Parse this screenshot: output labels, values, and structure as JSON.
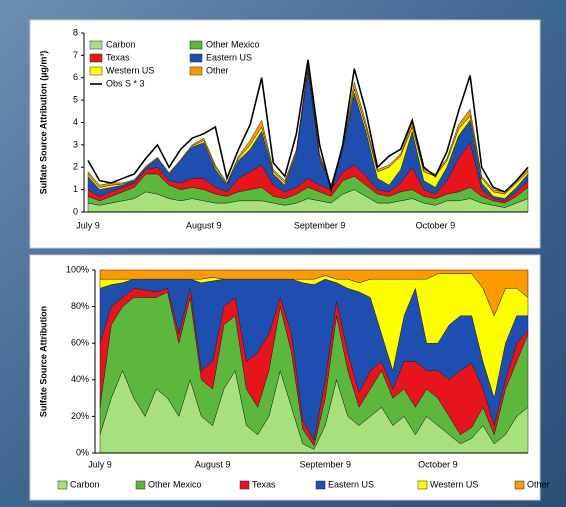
{
  "chart_data": [
    {
      "type": "area",
      "stacked": true,
      "ylabel": "Sulfate Source Attribution (µg/m³)",
      "legend": "upper left",
      "categories": [
        "July 9",
        null,
        null,
        null,
        null,
        null,
        null,
        null,
        null,
        null,
        "August 9",
        null,
        null,
        null,
        null,
        null,
        null,
        null,
        null,
        null,
        "September 9",
        null,
        null,
        null,
        null,
        null,
        null,
        null,
        null,
        null,
        "October 9",
        null,
        null,
        null,
        null,
        null,
        null,
        null,
        null
      ],
      "ylim": [
        0,
        8
      ],
      "yticks": [
        0,
        1,
        2,
        3,
        4,
        5,
        6,
        7,
        8
      ],
      "series": [
        {
          "name": "Carbon",
          "color": "#a8e07c",
          "values": [
            0.4,
            0.3,
            0.4,
            0.5,
            0.6,
            0.9,
            0.8,
            0.6,
            0.5,
            0.6,
            0.5,
            0.4,
            0.4,
            0.5,
            0.5,
            0.5,
            0.4,
            0.3,
            0.4,
            0.6,
            0.5,
            0.4,
            0.8,
            1.0,
            0.7,
            0.4,
            0.4,
            0.5,
            0.6,
            0.4,
            0.3,
            0.5,
            0.5,
            0.6,
            0.4,
            0.3,
            0.2,
            0.4,
            0.6
          ]
        },
        {
          "name": "Other Mexico",
          "color": "#5cb83c",
          "values": [
            0.3,
            0.2,
            0.3,
            0.4,
            0.5,
            0.8,
            0.9,
            0.6,
            0.5,
            0.5,
            0.5,
            0.4,
            0.3,
            0.4,
            0.5,
            0.6,
            0.3,
            0.3,
            0.4,
            0.5,
            0.4,
            0.3,
            0.6,
            0.6,
            0.5,
            0.4,
            0.3,
            0.4,
            0.4,
            0.3,
            0.3,
            0.3,
            0.4,
            0.5,
            0.3,
            0.2,
            0.2,
            0.3,
            0.5
          ]
        },
        {
          "name": "Texas",
          "color": "#e8141c",
          "values": [
            0.3,
            0.2,
            0.2,
            0.2,
            0.2,
            0.2,
            0.3,
            0.2,
            0.3,
            0.4,
            0.5,
            0.3,
            0.2,
            0.6,
            0.8,
            1.0,
            0.5,
            0.3,
            0.3,
            0.4,
            0.3,
            0.3,
            0.4,
            0.5,
            0.4,
            0.2,
            0.2,
            0.4,
            1.0,
            0.3,
            0.2,
            0.6,
            1.5,
            2.0,
            0.3,
            0.1,
            0.1,
            0.2,
            0.3
          ]
        },
        {
          "name": "Eastern US",
          "color": "#1e4fb0",
          "values": [
            0.6,
            0.3,
            0.2,
            0.1,
            0.1,
            0.1,
            0.4,
            0.3,
            1.0,
            1.4,
            1.6,
            0.8,
            0.3,
            0.8,
            1.0,
            1.5,
            0.5,
            0.3,
            1.5,
            4.8,
            1.2,
            0.1,
            1.0,
            3.2,
            2.0,
            0.5,
            0.3,
            0.6,
            1.6,
            0.4,
            0.3,
            0.6,
            1.0,
            1.0,
            0.3,
            0.1,
            0.1,
            0.2,
            0.3
          ]
        },
        {
          "name": "Western US",
          "color": "#ffff00",
          "values": [
            0.1,
            0.1,
            0.1,
            0.05,
            0,
            0,
            0,
            0,
            0,
            0.05,
            0.1,
            0.1,
            0.05,
            0.1,
            0.2,
            0.2,
            0.1,
            0.1,
            0.1,
            0.1,
            0.1,
            0.05,
            0.1,
            0.2,
            0.2,
            0.3,
            0.8,
            0.6,
            0.2,
            0.4,
            0.5,
            0.3,
            0.3,
            0.2,
            0.2,
            0.2,
            0.2,
            0.2,
            0.1
          ]
        },
        {
          "name": "Other",
          "color": "#ff9900",
          "values": [
            0.1,
            0.1,
            0.1,
            0.05,
            0.05,
            0.05,
            0.05,
            0.05,
            0.05,
            0.05,
            0.1,
            0.1,
            0.05,
            0.1,
            0.2,
            0.3,
            0.1,
            0.1,
            0.1,
            0.2,
            0.1,
            0.05,
            0.1,
            0.3,
            0.2,
            0.1,
            0.1,
            0.1,
            0.2,
            0.1,
            0.1,
            0.1,
            0.2,
            0.3,
            0.1,
            0.1,
            0.1,
            0.1,
            0.1
          ]
        },
        {
          "name": "Obs S * 3",
          "type": "line",
          "color": "#000000",
          "values": [
            2.3,
            1.4,
            1.3,
            1.5,
            1.7,
            2.4,
            3.0,
            2.0,
            2.8,
            3.3,
            3.5,
            3.8,
            1.5,
            2.8,
            3.9,
            6.0,
            2.2,
            1.6,
            3.5,
            6.8,
            3.0,
            1.0,
            3.0,
            6.4,
            4.5,
            2.0,
            2.5,
            2.8,
            4.1,
            2.0,
            1.6,
            2.7,
            4.5,
            6.1,
            2.0,
            1.1,
            0.9,
            1.4,
            2.0
          ]
        }
      ]
    },
    {
      "type": "area",
      "stacked": true,
      "ylabel": "Sulfate Source Attribution",
      "legend": "bottom",
      "categories": [
        "July 9",
        null,
        null,
        null,
        null,
        null,
        null,
        null,
        null,
        null,
        "August 9",
        null,
        null,
        null,
        null,
        null,
        null,
        null,
        null,
        null,
        "September 9",
        null,
        null,
        null,
        null,
        null,
        null,
        null,
        null,
        null,
        "October 9",
        null,
        null,
        null,
        null,
        null,
        null,
        null,
        null
      ],
      "ylim": [
        0,
        100
      ],
      "yticks": [
        {
          "value": 0,
          "label": "0%"
        },
        {
          "value": 20,
          "label": "20%"
        },
        {
          "value": 40,
          "label": "40%"
        },
        {
          "value": 60,
          "label": "60%"
        },
        {
          "value": 80,
          "label": "80%"
        },
        {
          "value": 100,
          "label": "100%"
        }
      ],
      "series": [
        {
          "name": "Carbon",
          "color": "#a8e07c",
          "values": [
            10,
            30,
            45,
            30,
            20,
            35,
            30,
            20,
            40,
            20,
            15,
            35,
            45,
            15,
            10,
            20,
            45,
            25,
            5,
            2,
            15,
            40,
            20,
            15,
            20,
            25,
            15,
            20,
            10,
            20,
            15,
            10,
            5,
            8,
            15,
            5,
            10,
            20,
            25
          ]
        },
        {
          "name": "Other Mexico",
          "color": "#5cb83c",
          "values": [
            15,
            40,
            35,
            55,
            65,
            50,
            58,
            40,
            45,
            20,
            20,
            35,
            30,
            20,
            15,
            25,
            35,
            30,
            8,
            2,
            15,
            35,
            25,
            10,
            15,
            20,
            15,
            15,
            15,
            15,
            15,
            10,
            5,
            6,
            10,
            5,
            25,
            30,
            40
          ]
        },
        {
          "name": "Texas",
          "color": "#e8141c",
          "values": [
            35,
            10,
            5,
            5,
            4,
            3,
            2,
            5,
            5,
            5,
            15,
            10,
            10,
            15,
            30,
            20,
            5,
            10,
            5,
            3,
            10,
            8,
            10,
            8,
            10,
            5,
            5,
            15,
            25,
            10,
            15,
            20,
            35,
            35,
            10,
            5,
            5,
            10,
            2
          ]
        },
        {
          "name": "Eastern US",
          "color": "#1e4fb0",
          "values": [
            30,
            12,
            8,
            5,
            6,
            7,
            5,
            30,
            5,
            48,
            44,
            15,
            10,
            45,
            40,
            30,
            10,
            30,
            75,
            85,
            55,
            10,
            35,
            55,
            40,
            15,
            10,
            25,
            40,
            15,
            15,
            30,
            30,
            26,
            15,
            15,
            20,
            15,
            8
          ]
        },
        {
          "name": "Western US",
          "color": "#ffff00",
          "values": [
            5,
            3,
            2,
            0,
            0,
            0,
            0,
            0,
            0,
            2,
            2,
            0,
            0,
            0,
            0,
            0,
            0,
            0,
            2,
            3,
            2,
            2,
            5,
            5,
            10,
            30,
            50,
            20,
            5,
            35,
            38,
            28,
            23,
            23,
            40,
            45,
            30,
            15,
            10
          ]
        },
        {
          "name": "Other",
          "color": "#ff9900",
          "values": [
            5,
            5,
            5,
            5,
            5,
            5,
            5,
            5,
            5,
            5,
            4,
            5,
            5,
            5,
            5,
            5,
            5,
            5,
            5,
            5,
            3,
            5,
            5,
            7,
            5,
            5,
            5,
            5,
            5,
            5,
            2,
            2,
            2,
            2,
            10,
            25,
            10,
            10,
            15
          ]
        }
      ]
    }
  ]
}
